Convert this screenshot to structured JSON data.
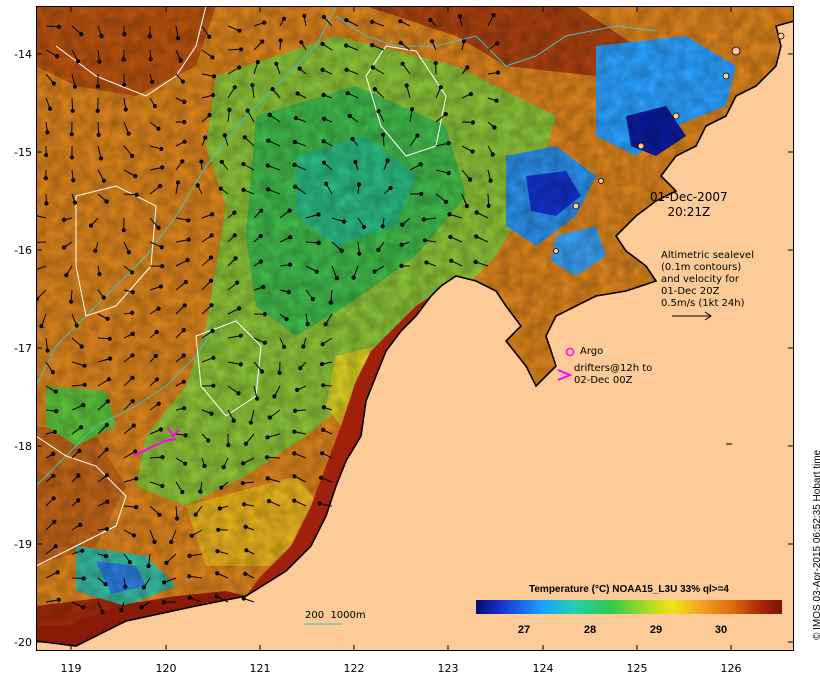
{
  "map": {
    "datestamp_line1": "01-Dec-2007",
    "datestamp_line2": "20:21Z",
    "altimetry_lines": [
      "Altimetric sealevel",
      "(0.1m contours)",
      "and velocity for",
      "01-Dec 20Z",
      "0.5m/s (1kt 24h)"
    ],
    "argo_label": "Argo",
    "drifters_line1": "drifters@12h to",
    "drifters_line2": "02-Dec 00Z",
    "isobath_label": "200  1000m",
    "y_ticks": [
      "-14",
      "-15",
      "-16",
      "-17",
      "-18",
      "-19",
      "-20"
    ],
    "x_ticks": [
      "119",
      "120",
      "121",
      "122",
      "123",
      "124",
      "125",
      "126"
    ],
    "legend_title": "Temperature (°C) NOAA15_L3U 33% ql>=4",
    "colorbar_ticks": [
      "27",
      "28",
      "29",
      "30"
    ],
    "credit": "© IMOS 03-Apr-2015 06:52:35 Hobart time",
    "colors": {
      "land": "#fccb98",
      "coastline": "#000000",
      "isobath": "#40c0c0",
      "sealevel_contour": "#ffffff",
      "drifter_marker": "#ff00ff"
    }
  }
}
